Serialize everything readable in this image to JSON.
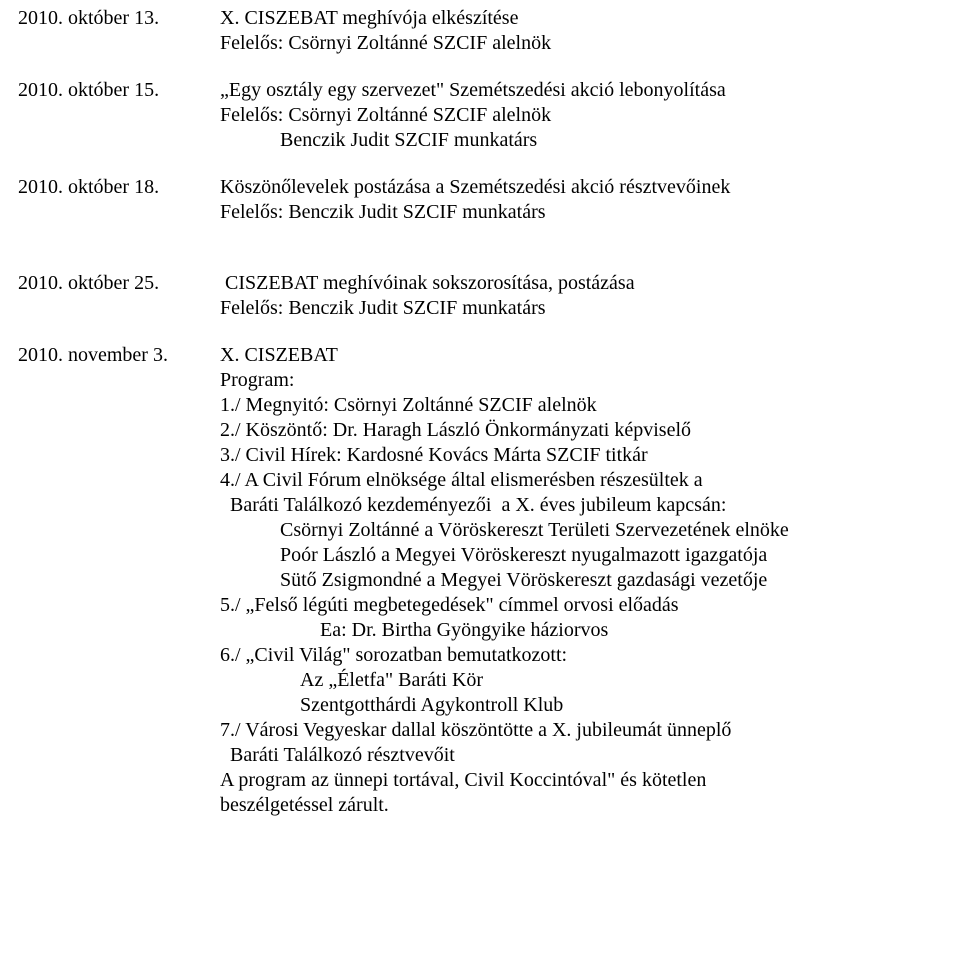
{
  "entries": [
    {
      "date": "2010. október 13.",
      "lines": [
        {
          "text": "X. CISZEBAT meghívója elkészítése"
        },
        {
          "text": "Felelős: Csörnyi Zoltánné SZCIF alelnök"
        }
      ]
    },
    {
      "date": "2010. október 15.",
      "lines": [
        {
          "text": "„Egy osztály egy szervezet\" Szemétszedési akció lebonyolítása"
        },
        {
          "text": "Felelős: Csörnyi Zoltánné SZCIF alelnök"
        },
        {
          "text": "Benczik Judit SZCIF munkatárs",
          "indent": "indent1"
        }
      ]
    },
    {
      "date": "2010. október 18.",
      "lines": [
        {
          "text": "Köszönőlevelek postázása a Szemétszedési akció résztvevőinek"
        },
        {
          "text": "Felelős: Benczik Judit SZCIF munkatárs"
        }
      ],
      "gapAfter": true
    },
    {
      "date": "2010. október 25.",
      "lines": [
        {
          "text": " CISZEBAT meghívóinak sokszorosítása, postázása"
        },
        {
          "text": "Felelős: Benczik Judit SZCIF munkatárs"
        }
      ]
    },
    {
      "date": "2010. november 3.",
      "lines": [
        {
          "text": "X. CISZEBAT"
        },
        {
          "text": "Program:"
        },
        {
          "text": "1./ Megnyitó: Csörnyi Zoltánné SZCIF alelnök"
        },
        {
          "text": "2./ Köszöntő: Dr. Haragh László Önkormányzati képviselő"
        },
        {
          "text": "3./ Civil Hírek: Kardosné Kovács Márta SZCIF titkár"
        },
        {
          "text": "4./ A Civil Fórum elnöksége által elismerésben részesültek a"
        },
        {
          "text": "  Baráti Találkozó kezdeményezői  a X. éves jubileum kapcsán:"
        },
        {
          "text": "Csörnyi Zoltánné a Vöröskereszt Területi Szervezetének elnöke",
          "indent": "sub-deep"
        },
        {
          "text": "Poór László a Megyei Vöröskereszt nyugalmazott igazgatója",
          "indent": "sub-deep"
        },
        {
          "text": "Sütő Zsigmondné a Megyei Vöröskereszt gazdasági vezetője",
          "indent": "sub-deep"
        },
        {
          "text": "5./ „Felső légúti megbetegedések\" címmel orvosi előadás"
        },
        {
          "text": "Ea: Dr. Birtha Gyöngyike háziorvos",
          "indent": "indent-ea"
        },
        {
          "text": "6./ „Civil Világ\" sorozatban bemutatkozott:"
        },
        {
          "text": "Az „Életfa\" Baráti Kör",
          "indent": "indent-bcs"
        },
        {
          "text": "Szentgotthárdi Agykontroll Klub",
          "indent": "indent-bcs"
        },
        {
          "text": "7./ Városi Vegyeskar dallal köszöntötte a X. jubileumát ünneplő",
          "indent": ""
        },
        {
          "text": "  Baráti Találkozó résztvevőit"
        },
        {
          "text": "A program az ünnepi tortával, Civil Koccintóval\" és kötetlen"
        },
        {
          "text": "beszélgetéssel zárult."
        }
      ]
    }
  ]
}
